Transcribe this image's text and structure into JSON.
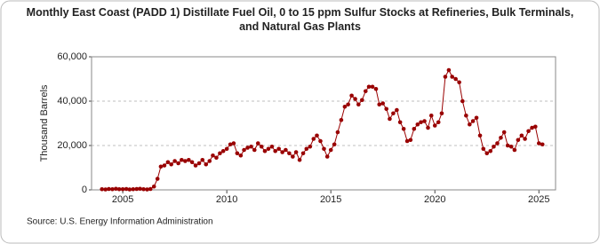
{
  "chart_data": {
    "type": "line",
    "title": "Monthly East Coast (PADD 1) Distillate Fuel Oil, 0 to 15 ppm Sulfur Stocks at Refineries, Bulk Terminals, and Natural Gas Plants",
    "y_label": "Thousand Barrels",
    "source": "Source: U.S. Energy Information Administration",
    "xlim": [
      2003.5,
      2025.8
    ],
    "xticks": [
      2005,
      2010,
      2015,
      2020,
      2025
    ],
    "ylim": [
      0,
      60000
    ],
    "yticks": [
      0,
      {
        "value": 20000,
        "label": "20,000"
      },
      {
        "value": 40000,
        "label": "40,000"
      },
      {
        "value": 60000,
        "label": "60,000"
      }
    ],
    "grid": true,
    "x": [
      2004,
      2004.17,
      2004.33,
      2004.5,
      2004.67,
      2004.83,
      2005,
      2005.17,
      2005.33,
      2005.5,
      2005.67,
      2005.83,
      2006,
      2006.17,
      2006.33,
      2006.5,
      2006.67,
      2006.83,
      2007,
      2007.17,
      2007.33,
      2007.5,
      2007.67,
      2007.83,
      2008,
      2008.17,
      2008.33,
      2008.5,
      2008.67,
      2008.83,
      2009,
      2009.17,
      2009.33,
      2009.5,
      2009.67,
      2009.83,
      2010,
      2010.17,
      2010.33,
      2010.5,
      2010.67,
      2010.83,
      2011,
      2011.17,
      2011.33,
      2011.5,
      2011.67,
      2011.83,
      2012,
      2012.17,
      2012.33,
      2012.5,
      2012.67,
      2012.83,
      2013,
      2013.17,
      2013.33,
      2013.5,
      2013.67,
      2013.83,
      2014,
      2014.17,
      2014.33,
      2014.5,
      2014.67,
      2014.83,
      2015,
      2015.17,
      2015.33,
      2015.5,
      2015.67,
      2015.83,
      2016,
      2016.17,
      2016.33,
      2016.5,
      2016.67,
      2016.83,
      2017,
      2017.17,
      2017.33,
      2017.5,
      2017.67,
      2017.83,
      2018,
      2018.17,
      2018.33,
      2018.5,
      2018.67,
      2018.83,
      2019,
      2019.17,
      2019.33,
      2019.5,
      2019.67,
      2019.83,
      2020,
      2020.17,
      2020.33,
      2020.5,
      2020.67,
      2020.83,
      2021,
      2021.17,
      2021.33,
      2021.5,
      2021.67,
      2021.83,
      2022,
      2022.17,
      2022.33,
      2022.5,
      2022.67,
      2022.83,
      2023,
      2023.17,
      2023.33,
      2023.5,
      2023.67,
      2023.83,
      2024,
      2024.17,
      2024.33,
      2024.5,
      2024.67,
      2024.83,
      2025,
      2025.17
    ],
    "series": [
      {
        "color": "#990000",
        "values": [
          300,
          200,
          400,
          300,
          500,
          300,
          300,
          400,
          200,
          300,
          400,
          500,
          300,
          200,
          400,
          1500,
          5000,
          10500,
          11000,
          12500,
          11500,
          13000,
          12000,
          13500,
          13000,
          13500,
          12500,
          11000,
          12000,
          13500,
          11500,
          13000,
          15500,
          14500,
          16500,
          17500,
          18500,
          20500,
          21000,
          16500,
          15500,
          18000,
          19000,
          19500,
          18000,
          21000,
          19500,
          17500,
          18500,
          19500,
          17500,
          18500,
          17000,
          18000,
          16500,
          15000,
          17000,
          13500,
          16500,
          18500,
          19500,
          23000,
          24500,
          22000,
          18500,
          15000,
          18000,
          20500,
          26000,
          31500,
          37500,
          38500,
          42500,
          41000,
          38500,
          40500,
          44500,
          46500,
          46500,
          45500,
          38500,
          39000,
          36500,
          32000,
          34500,
          36000,
          30500,
          27500,
          22000,
          22500,
          27500,
          29500,
          30500,
          31000,
          28000,
          33500,
          29000,
          30500,
          34500,
          51000,
          54000,
          51000,
          50000,
          48500,
          40000,
          33500,
          29500,
          31000,
          32500,
          24500,
          18500,
          16500,
          17500,
          19500,
          21000,
          23500,
          26000,
          20000,
          19500,
          18000,
          22500,
          24500,
          23000,
          26500,
          28000,
          28500,
          21000,
          20500
        ]
      }
    ]
  }
}
